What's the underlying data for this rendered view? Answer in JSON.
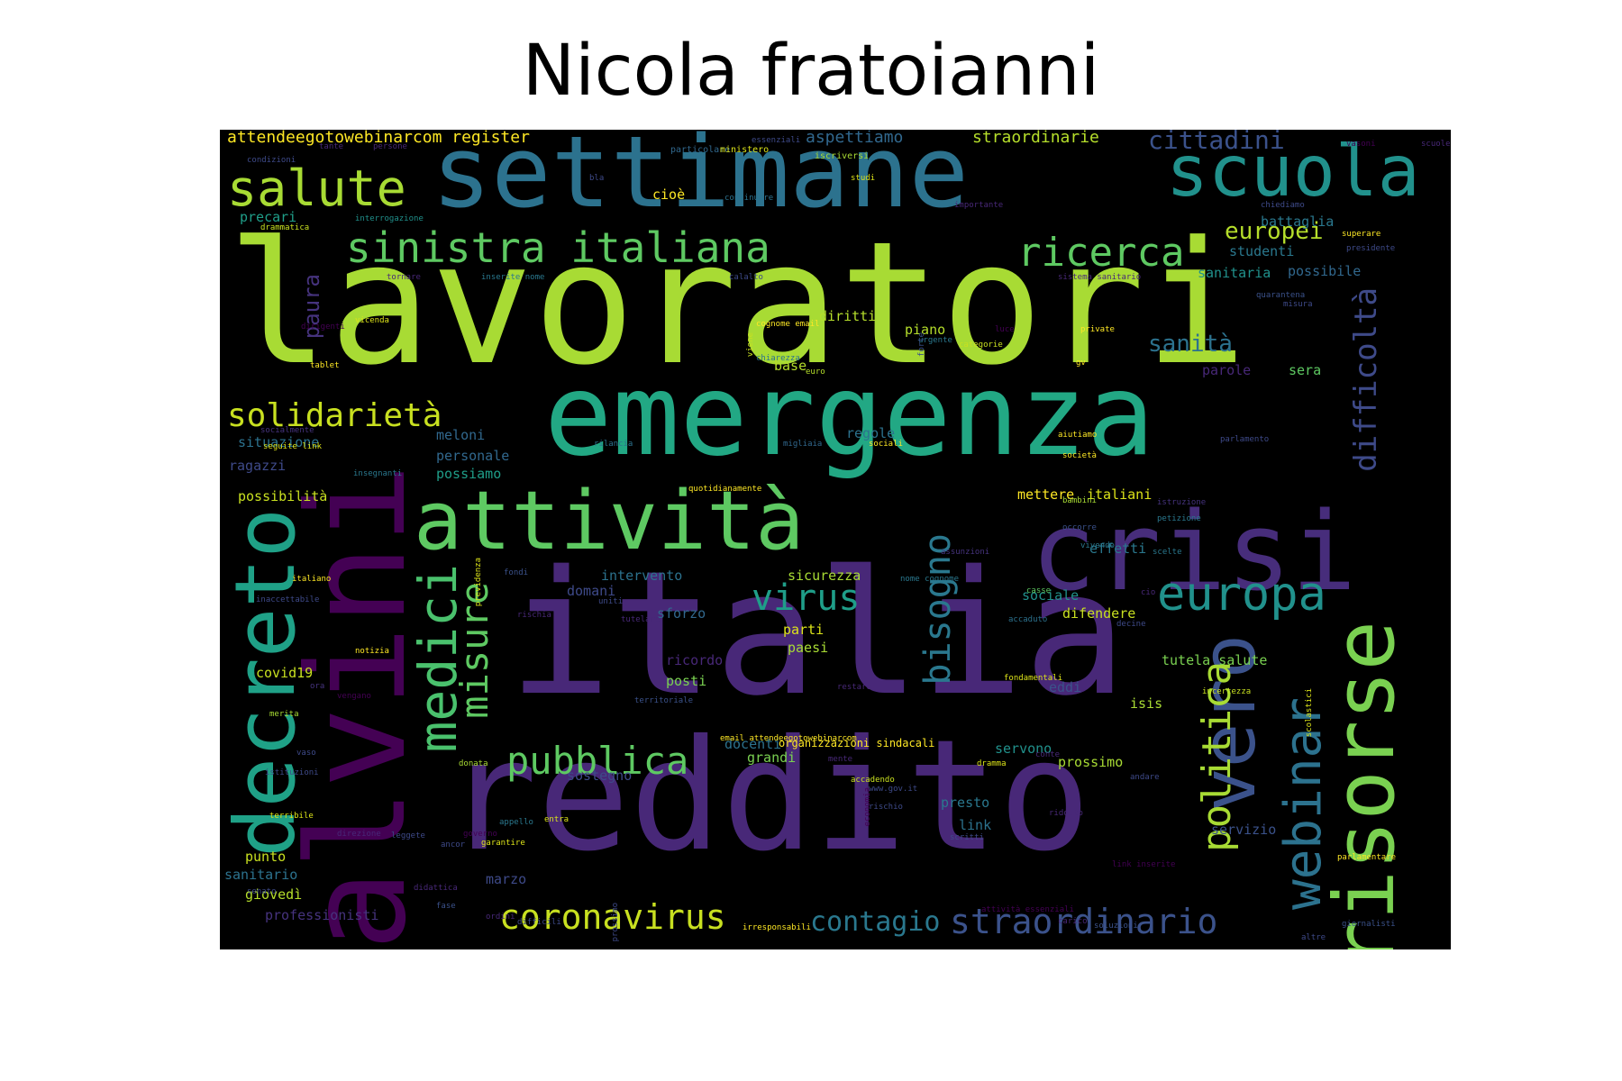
{
  "title": "Nicola fratoianni",
  "words": [
    {
      "t": "lavoratori",
      "c": "#a8db34"
    },
    {
      "t": "emergenza",
      "c": "#22a884"
    },
    {
      "t": "italia",
      "c": "#482878"
    },
    {
      "t": "reddito",
      "c": "#482878"
    },
    {
      "t": "settimane",
      "c": "#2c728e"
    },
    {
      "t": "crisi",
      "c": "#472d7b"
    },
    {
      "t": "salvini",
      "c": "#440154"
    },
    {
      "t": "attività",
      "c": "#5ec962"
    },
    {
      "t": "scuola",
      "c": "#21918c"
    },
    {
      "t": "salute",
      "c": "#a8db34"
    },
    {
      "t": "decreto",
      "c": "#1fa187"
    },
    {
      "t": "risorse",
      "c": "#7ad151"
    },
    {
      "t": "sinistra italiana",
      "c": "#5ec962"
    },
    {
      "t": "vero",
      "c": "#3b528b"
    },
    {
      "t": "webinar",
      "c": "#2c728e"
    },
    {
      "t": "europa",
      "c": "#21918c"
    },
    {
      "t": "ricerca",
      "c": "#5ec962"
    },
    {
      "t": "medici",
      "c": "#4ac16d"
    },
    {
      "t": "misure",
      "c": "#5ec962"
    },
    {
      "t": "pubblica",
      "c": "#5ec962"
    },
    {
      "t": "coronavirus",
      "c": "#c8e020"
    },
    {
      "t": "straordinario",
      "c": "#3b528b"
    },
    {
      "t": "bisogno",
      "c": "#2a788e"
    },
    {
      "t": "politica",
      "c": "#a8db34"
    },
    {
      "t": "virus",
      "c": "#1f9e89"
    },
    {
      "t": "solidarietà",
      "c": "#c8e020"
    },
    {
      "t": "difficoltà",
      "c": "#3e4a89"
    },
    {
      "t": "contagio",
      "c": "#2a788e"
    },
    {
      "t": "cittadini",
      "c": "#3b528b"
    },
    {
      "t": "sanità",
      "c": "#2c728e"
    },
    {
      "t": "europei",
      "c": "#b5de2b"
    },
    {
      "t": "paura",
      "c": "#46337e"
    },
    {
      "t": "attendeegotowebinarcom register",
      "c": "#fde725"
    },
    {
      "t": "aspettiamo",
      "c": "#31688e"
    },
    {
      "t": "straordinarie",
      "c": "#b5de2b"
    },
    {
      "t": "precari",
      "c": "#1f9e89"
    },
    {
      "t": "battaglia",
      "c": "#2a788e"
    },
    {
      "t": "studenti",
      "c": "#2a788e"
    },
    {
      "t": "sanitaria",
      "c": "#21918c"
    },
    {
      "t": "possibile",
      "c": "#31688e"
    },
    {
      "t": "diritti",
      "c": "#b5de2b"
    },
    {
      "t": "base",
      "c": "#b5de2b"
    },
    {
      "t": "parole",
      "c": "#482878"
    },
    {
      "t": "sera",
      "c": "#5ec962"
    },
    {
      "t": "regole",
      "c": "#2c728e"
    },
    {
      "t": "meloni",
      "c": "#31688e"
    },
    {
      "t": "situazione",
      "c": "#2c728e"
    },
    {
      "t": "personale",
      "c": "#31688e"
    },
    {
      "t": "ragazzi",
      "c": "#3e4a89"
    },
    {
      "t": "possiamo",
      "c": "#1f9e89"
    },
    {
      "t": "possibilità",
      "c": "#c8e020"
    },
    {
      "t": "mettere",
      "c": "#fde725"
    },
    {
      "t": "italiani",
      "c": "#dce319"
    },
    {
      "t": "intervento",
      "c": "#2c728e"
    },
    {
      "t": "sicurezza",
      "c": "#a8db34"
    },
    {
      "t": "domani",
      "c": "#3e4a89"
    },
    {
      "t": "effetti",
      "c": "#2a788e"
    },
    {
      "t": "sociale",
      "c": "#21918c"
    },
    {
      "t": "difendere",
      "c": "#c8e020"
    },
    {
      "t": "sforzo",
      "c": "#31688e"
    },
    {
      "t": "parti",
      "c": "#dce319"
    },
    {
      "t": "paesi",
      "c": "#a8db34"
    },
    {
      "t": "tutela salute",
      "c": "#7ad151"
    },
    {
      "t": "covid19",
      "c": "#c8e020"
    },
    {
      "t": "ricordo",
      "c": "#482878"
    },
    {
      "t": "posti",
      "c": "#7ad151"
    },
    {
      "t": "eddi",
      "c": "#3b528b"
    },
    {
      "t": "isis",
      "c": "#a8db34"
    },
    {
      "t": "docenti",
      "c": "#2c728e"
    },
    {
      "t": "organizzazioni sindacali",
      "c": "#fde725"
    },
    {
      "t": "servono",
      "c": "#21918c"
    },
    {
      "t": "sostegno",
      "c": "#3e4a89"
    },
    {
      "t": "grandi",
      "c": "#7ad151"
    },
    {
      "t": "prossimo",
      "c": "#a8db34"
    },
    {
      "t": "presto",
      "c": "#2a788e"
    },
    {
      "t": "punto",
      "c": "#c8e020"
    },
    {
      "t": "sanitario",
      "c": "#2c728e"
    },
    {
      "t": "giovedì",
      "c": "#b5de2b"
    },
    {
      "t": "marzo",
      "c": "#3e4a89"
    },
    {
      "t": "link",
      "c": "#2c728e"
    },
    {
      "t": "servizio",
      "c": "#3b528b"
    },
    {
      "t": "professionisti",
      "c": "#46337e"
    },
    {
      "t": "cioè",
      "c": "#fde725"
    },
    {
      "t": "piano",
      "c": "#b5de2b"
    },
    {
      "t": "particolare",
      "c": "#31688e"
    },
    {
      "t": "ministero",
      "c": "#dce319"
    },
    {
      "t": "iscriversi",
      "c": "#a8db34"
    },
    {
      "t": "interrogazione",
      "c": "#21918c"
    },
    {
      "t": "drammatica",
      "c": "#c8e020"
    },
    {
      "t": "continuare",
      "c": "#2c728e"
    },
    {
      "t": "importante",
      "c": "#482878"
    },
    {
      "t": "chiediamo",
      "c": "#3e4a89"
    },
    {
      "t": "superare",
      "c": "#fde725"
    },
    {
      "t": "presidente",
      "c": "#3e4a89"
    },
    {
      "t": "tornare",
      "c": "#482878"
    },
    {
      "t": "inserite nome",
      "c": "#2a788e"
    },
    {
      "t": "calalto",
      "c": "#3e4a89"
    },
    {
      "t": "sistema sanitario",
      "c": "#482878"
    },
    {
      "t": "quarantena",
      "c": "#3b528b"
    },
    {
      "t": "misura",
      "c": "#3e4a89"
    },
    {
      "t": "vicenda",
      "c": "#dce319"
    },
    {
      "t": "cognome email",
      "c": "#fde725"
    },
    {
      "t": "luce",
      "c": "#440154"
    },
    {
      "t": "private",
      "c": "#fde725"
    },
    {
      "t": "urgente",
      "c": "#2a788e"
    },
    {
      "t": "categorie",
      "c": "#c8e020"
    },
    {
      "t": "tablet",
      "c": "#fde725"
    },
    {
      "t": "forte",
      "c": "#3b528b"
    },
    {
      "t": "viene",
      "c": "#c8e020"
    },
    {
      "t": "chiarezza",
      "c": "#2c728e"
    },
    {
      "t": "euro",
      "c": "#b5de2b"
    },
    {
      "t": "dirigenti",
      "c": "#440154"
    },
    {
      "t": "socialmente",
      "c": "#46337e"
    },
    {
      "t": "seguite link",
      "c": "#dce319"
    },
    {
      "t": "rilancia",
      "c": "#2c728e"
    },
    {
      "t": "migliaia",
      "c": "#31688e"
    },
    {
      "t": "sociali",
      "c": "#fde725"
    },
    {
      "t": "aiutiamo",
      "c": "#fde725"
    },
    {
      "t": "società",
      "c": "#fde725"
    },
    {
      "t": "parlamento",
      "c": "#3e4a89"
    },
    {
      "t": "insegnanti",
      "c": "#2a788e"
    },
    {
      "t": "quotidianamente",
      "c": "#fde725"
    },
    {
      "t": "bambini",
      "c": "#a8db34"
    },
    {
      "t": "istruzione",
      "c": "#46337e"
    },
    {
      "t": "previdenza",
      "c": "#dce319"
    },
    {
      "t": "occorre",
      "c": "#3b528b"
    },
    {
      "t": "petizione",
      "c": "#2a788e"
    },
    {
      "t": "vivendo",
      "c": "#2a788e"
    },
    {
      "t": "assunzioni",
      "c": "#46337e"
    },
    {
      "t": "casse",
      "c": "#5ec962"
    },
    {
      "t": "scelte",
      "c": "#2a788e"
    },
    {
      "t": "fondi",
      "c": "#3b528b"
    },
    {
      "t": "uniti",
      "c": "#3e4a89"
    },
    {
      "t": "nome cognome",
      "c": "#2a788e"
    },
    {
      "t": "italiano",
      "c": "#fde725"
    },
    {
      "t": "inaccettabile",
      "c": "#3e4a89"
    },
    {
      "t": "rischia",
      "c": "#482878"
    },
    {
      "t": "tutelare",
      "c": "#482878"
    },
    {
      "t": "accaduto",
      "c": "#2c728e"
    },
    {
      "t": "decine",
      "c": "#3e4a89"
    },
    {
      "t": "notizia",
      "c": "#fde725"
    },
    {
      "t": "restare",
      "c": "#482878"
    },
    {
      "t": "fondamentali",
      "c": "#dce319"
    },
    {
      "t": "incertezza",
      "c": "#c8e020"
    },
    {
      "t": "vengano",
      "c": "#440154"
    },
    {
      "t": "territoriale",
      "c": "#3b528b"
    },
    {
      "t": "scolastici",
      "c": "#dce319"
    },
    {
      "t": "merita",
      "c": "#a8db34"
    },
    {
      "t": "vaso",
      "c": "#3e4a89"
    },
    {
      "t": "email attendeegotowebinarcom",
      "c": "#fde725"
    },
    {
      "t": "mente",
      "c": "#482878"
    },
    {
      "t": "conte",
      "c": "#482878"
    },
    {
      "t": "donata",
      "c": "#a8db34"
    },
    {
      "t": "accadendo",
      "c": "#c8e020"
    },
    {
      "t": "dramma",
      "c": "#dce319"
    },
    {
      "t": "andare",
      "c": "#3e4a89"
    },
    {
      "t": "istituzioni",
      "c": "#3e4a89"
    },
    {
      "t": "economia",
      "c": "#440154"
    },
    {
      "t": "terribile",
      "c": "#dce319"
    },
    {
      "t": "rischio",
      "c": "#3e4a89"
    },
    {
      "t": "appello",
      "c": "#2a788e"
    },
    {
      "t": "direzione",
      "c": "#482878"
    },
    {
      "t": "leggete",
      "c": "#3e4a89"
    },
    {
      "t": "scritti",
      "c": "#3e4a89"
    },
    {
      "t": "entra",
      "c": "#dce319"
    },
    {
      "t": "ancor",
      "c": "#3e4a89"
    },
    {
      "t": "garantire",
      "c": "#dce319"
    },
    {
      "t": "link inserite",
      "c": "#440154"
    },
    {
      "t": "parlamentare",
      "c": "#fde725"
    },
    {
      "t": "didattica",
      "c": "#482878"
    },
    {
      "t": "senato",
      "c": "#3e4a89"
    },
    {
      "t": "fase",
      "c": "#3b528b"
    },
    {
      "t": "difficili",
      "c": "#3e4a89"
    },
    {
      "t": "irresponsabili",
      "c": "#fde725"
    },
    {
      "t": "attività essenziali",
      "c": "#440154"
    },
    {
      "t": "carico",
      "c": "#482878"
    },
    {
      "t": "soluzioni",
      "c": "#3b528b"
    },
    {
      "t": "giornalisti",
      "c": "#3b528b"
    },
    {
      "t": "altre",
      "c": "#3e4a89"
    },
    {
      "t": "condizioni",
      "c": "#3e4a89"
    },
    {
      "t": "tante",
      "c": "#482878"
    },
    {
      "t": "persone",
      "c": "#482878"
    },
    {
      "t": "essenziali",
      "c": "#3e4a89"
    },
    {
      "t": "vasoni",
      "c": "#440154"
    },
    {
      "t": "scuole",
      "c": "#482878"
    },
    {
      "t": "bla",
      "c": "#3e4a89"
    },
    {
      "t": "studi",
      "c": "#dce319"
    },
    {
      "t": "governo",
      "c": "#440154"
    },
    {
      "t": "prossimo",
      "c": "#3e4a89"
    },
    {
      "t": "ordini",
      "c": "#482878"
    },
    {
      "t": "ridotto",
      "c": "#482878"
    },
    {
      "t": "cio",
      "c": "#482878"
    },
    {
      "t": "www.gov.it",
      "c": "#3e4a89"
    },
    {
      "t": "ora",
      "c": "#46337e"
    },
    {
      "t": "gv",
      "c": "#fde725"
    },
    {
      "t": "de",
      "c": "#46337e"
    },
    {
      "t": "sono",
      "c": "#482878"
    }
  ]
}
